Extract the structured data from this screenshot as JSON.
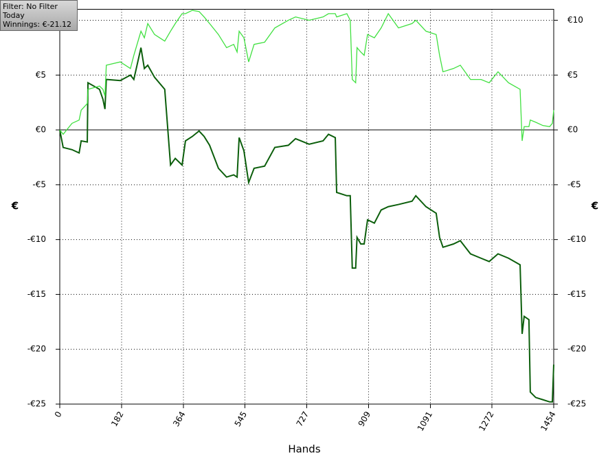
{
  "info": {
    "filter": "Filter: No Filter",
    "period": "Today",
    "winnings": "Winnings: €-21.12"
  },
  "chart_data": {
    "type": "line",
    "xlabel": "Hands",
    "ylabel": "€",
    "xlim": [
      0,
      1454
    ],
    "ylim": [
      -25,
      11
    ],
    "xticks": [
      0,
      182,
      364,
      545,
      727,
      909,
      1091,
      1272,
      1454
    ],
    "yticks": [
      {
        "value": 10,
        "label": "€10"
      },
      {
        "value": 5,
        "label": "€5"
      },
      {
        "value": 0,
        "label": "€0"
      },
      {
        "value": -5,
        "label": "-€5"
      },
      {
        "value": -10,
        "label": "-€10"
      },
      {
        "value": -15,
        "label": "-€15"
      },
      {
        "value": -20,
        "label": "-€20"
      },
      {
        "value": -25,
        "label": "-€25"
      }
    ],
    "grid": true,
    "x": [
      0,
      10,
      36,
      57,
      63,
      81,
      83,
      117,
      127,
      133,
      137,
      178,
      208,
      218,
      239,
      249,
      259,
      279,
      309,
      326,
      340,
      360,
      370,
      390,
      410,
      425,
      441,
      467,
      491,
      512,
      522,
      528,
      542,
      556,
      572,
      603,
      633,
      673,
      694,
      734,
      775,
      791,
      811,
      815,
      845,
      855,
      861,
      871,
      875,
      886,
      896,
      906,
      926,
      946,
      967,
      997,
      1037,
      1048,
      1078,
      1108,
      1118,
      1128,
      1159,
      1179,
      1209,
      1240,
      1264,
      1290,
      1321,
      1355,
      1361,
      1367,
      1381,
      1385,
      1401,
      1422,
      1442,
      1450,
      1454
    ],
    "series": [
      {
        "color": "#0b5e0b",
        "values": [
          0,
          -1.6,
          -1.8,
          -2.1,
          -1.0,
          -1.1,
          4.3,
          3.7,
          2.8,
          1.9,
          4.6,
          4.5,
          5.0,
          4.6,
          7.5,
          5.6,
          5.9,
          4.8,
          3.7,
          -3.2,
          -2.6,
          -3.2,
          -1.0,
          -0.6,
          -0.1,
          -0.6,
          -1.4,
          -3.5,
          -4.3,
          -4.1,
          -4.3,
          -0.7,
          -1.9,
          -4.8,
          -3.5,
          -3.3,
          -1.6,
          -1.4,
          -0.8,
          -1.3,
          -1.0,
          -0.4,
          -0.7,
          -5.7,
          -6.0,
          -6.0,
          -12.6,
          -12.6,
          -9.8,
          -10.4,
          -10.4,
          -8.2,
          -8.5,
          -7.3,
          -7.0,
          -6.8,
          -6.5,
          -6.0,
          -7.0,
          -7.6,
          -9.8,
          -10.7,
          -10.4,
          -10.1,
          -11.3,
          -11.7,
          -12.0,
          -11.3,
          -11.7,
          -12.3,
          -18.6,
          -17.0,
          -17.3,
          -23.9,
          -24.4,
          -24.6,
          -24.8,
          -24.8,
          -21.4
        ]
      },
      {
        "color": "#3fe03f",
        "values": [
          0,
          -0.4,
          0.6,
          0.9,
          1.8,
          2.4,
          3.7,
          4.0,
          3.7,
          3.1,
          5.9,
          6.2,
          5.6,
          6.8,
          9.0,
          8.4,
          9.7,
          8.7,
          8.1,
          9.0,
          9.7,
          10.6,
          10.6,
          10.9,
          10.8,
          10.3,
          9.7,
          8.7,
          7.5,
          7.8,
          7.1,
          9.0,
          8.4,
          6.2,
          7.8,
          8.0,
          9.3,
          10.0,
          10.3,
          10.0,
          10.3,
          10.6,
          10.6,
          10.3,
          10.6,
          10.0,
          4.6,
          4.3,
          7.5,
          7.1,
          6.8,
          8.7,
          8.4,
          9.3,
          10.6,
          9.3,
          9.7,
          10.0,
          9.0,
          8.7,
          6.8,
          5.3,
          5.6,
          5.9,
          4.6,
          4.6,
          4.3,
          5.3,
          4.3,
          3.7,
          -1.0,
          0.3,
          0.3,
          0.9,
          0.7,
          0.4,
          0.3,
          0.6,
          1.8
        ]
      }
    ]
  }
}
